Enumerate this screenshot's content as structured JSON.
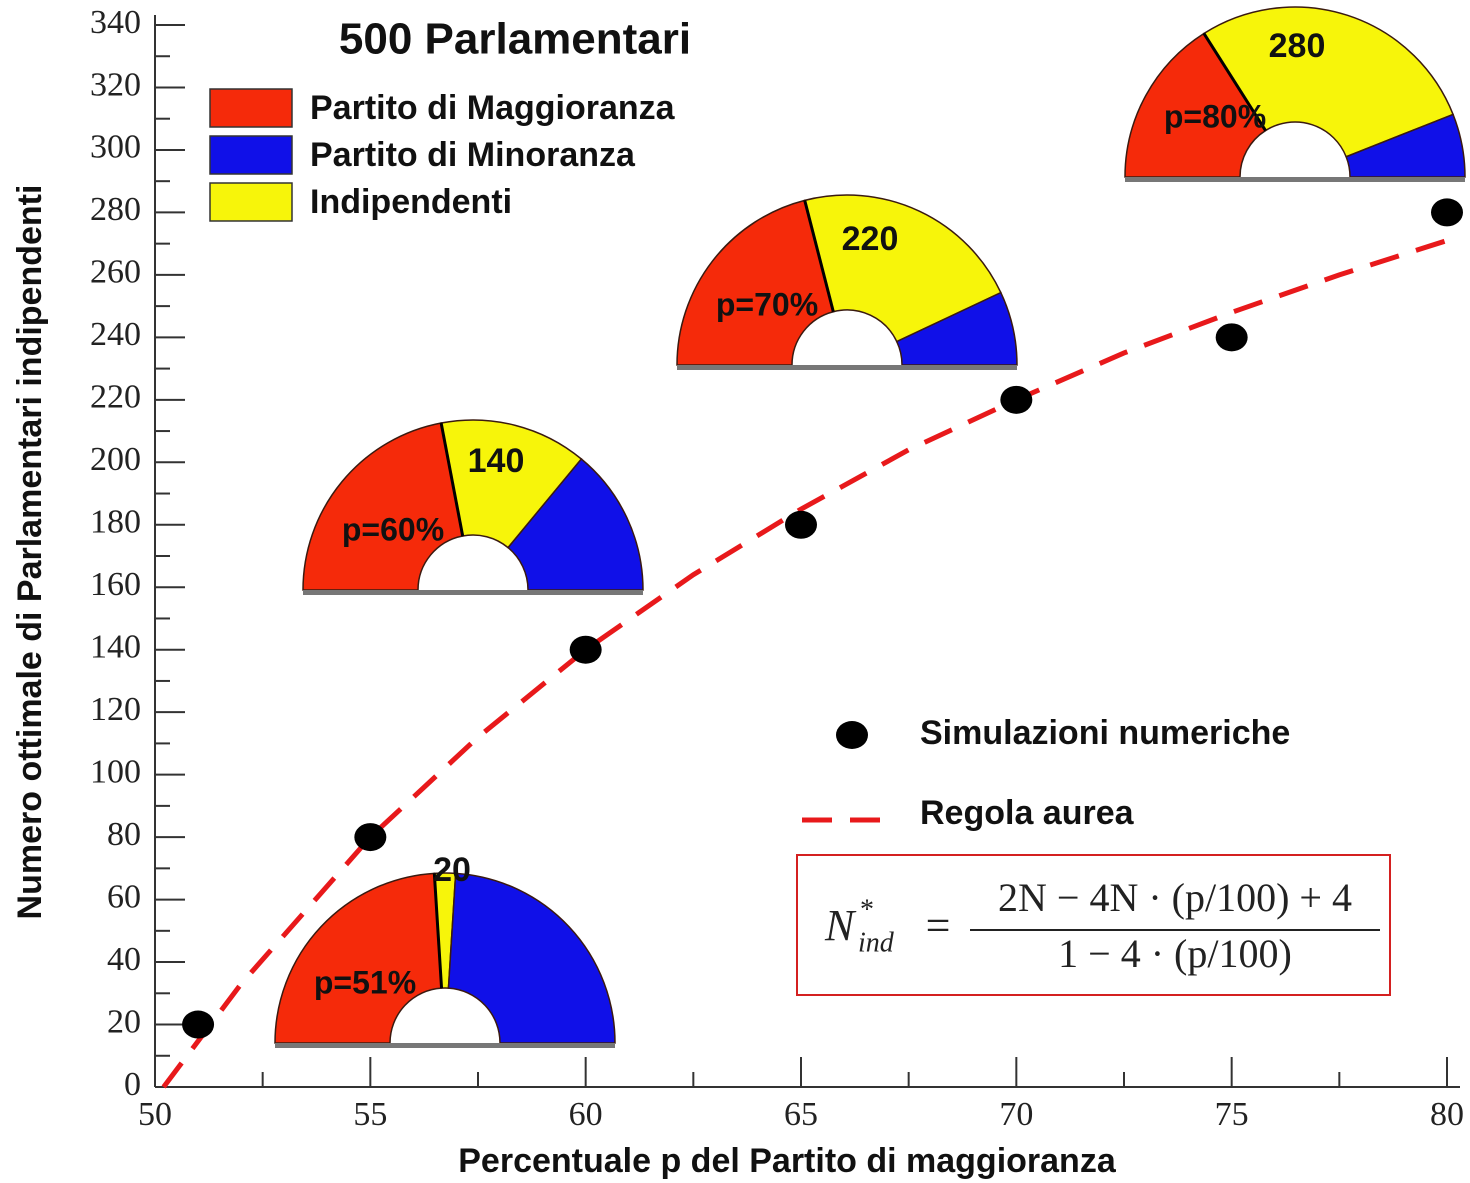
{
  "chart_data": {
    "type": "scatter",
    "title": "500 Parlamentari",
    "x_label": "Percentuale p del Partito di maggioranza",
    "y_label": "Numero ottimale di Parlamentari indipendenti",
    "xlim": [
      50,
      80
    ],
    "xticks": [
      50,
      55,
      60,
      65,
      70,
      75,
      80
    ],
    "xticks_minor": [
      52.5,
      57.5,
      62.5,
      67.5,
      72.5,
      77.5
    ],
    "ylim": [
      0,
      340
    ],
    "yticks": [
      0,
      20,
      40,
      60,
      80,
      100,
      120,
      140,
      160,
      180,
      200,
      220,
      240,
      260,
      280,
      300,
      320,
      340
    ],
    "yticks_minor": [
      10,
      30,
      50,
      70,
      90,
      110,
      130,
      150,
      170,
      190,
      210,
      230,
      250,
      270,
      290,
      310,
      330
    ],
    "series": [
      {
        "name": "Simulazioni numeriche",
        "type": "scatter",
        "color": "#000000",
        "x": [
          51,
          55,
          60,
          65,
          70,
          75,
          80
        ],
        "values": [
          20,
          80,
          140,
          180,
          220,
          240,
          280
        ]
      },
      {
        "name": "Regola aurea",
        "type": "line",
        "color": "#e8191b",
        "dashed": true,
        "x": [
          50.2,
          52,
          55,
          57.5,
          60,
          62.5,
          65,
          67.5,
          70,
          72.5,
          75,
          77.5,
          80
        ],
        "values": [
          0,
          33,
          80,
          112,
          140,
          164,
          185,
          204,
          220,
          235,
          248,
          260,
          271
        ]
      }
    ],
    "parties": [
      {
        "name": "Partito di Maggioranza",
        "color": "#f52a0a"
      },
      {
        "name": "Indipendenti",
        "color": "#f7f50a"
      },
      {
        "name": "Partito di Minoranza",
        "color": "#1010e8"
      }
    ],
    "legend_order": [
      0,
      2,
      1
    ],
    "hemicycles": [
      {
        "label": "p=51%",
        "seats": [
          240,
          20,
          240
        ]
      },
      {
        "label": "p=60%",
        "seats": [
          220,
          140,
          140
        ]
      },
      {
        "label": "p=70%",
        "seats": [
          210,
          220,
          70
        ]
      },
      {
        "label": "p=80%",
        "seats": [
          160,
          280,
          60
        ]
      }
    ],
    "formula": {
      "symbol": "N",
      "superscript": "*",
      "subscript": "ind",
      "equals": "=",
      "numerator": "2N − 4N · (p/100) + 4",
      "denominator": "1 − 4 · (p/100)"
    }
  }
}
